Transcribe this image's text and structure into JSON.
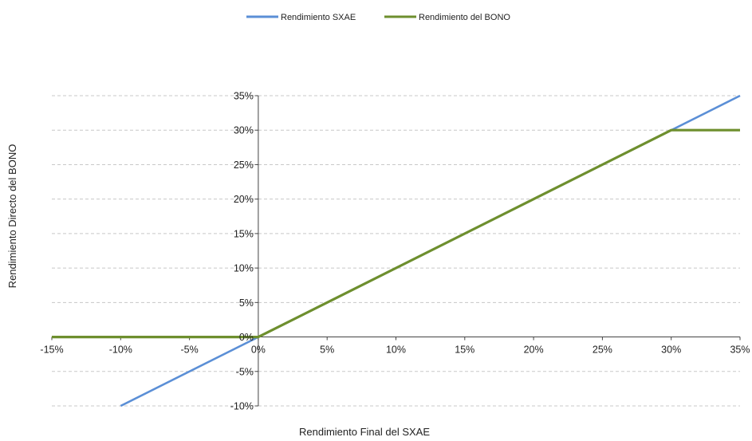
{
  "colors": {
    "series_sxae": "#5b8fd6",
    "series_bono": "#6e8f2e",
    "grid": "#c8c8c8",
    "axis": "#444444"
  },
  "chart_data": {
    "type": "line",
    "title": "",
    "xlabel": "Rendimiento Final del SXAE",
    "ylabel": "Rendimiento Directo del BONO",
    "xlim": [
      -15,
      35
    ],
    "ylim": [
      -10,
      35
    ],
    "x_ticks": [
      -15,
      -10,
      -5,
      0,
      5,
      10,
      15,
      20,
      25,
      30,
      35
    ],
    "y_ticks": [
      -10,
      -5,
      0,
      5,
      10,
      15,
      20,
      25,
      30,
      35
    ],
    "x_tick_labels": [
      "-15%",
      "-10%",
      "-5%",
      "0%",
      "5%",
      "10%",
      "15%",
      "20%",
      "25%",
      "30%",
      "35%"
    ],
    "y_tick_labels": [
      "-10%",
      "-5%",
      "0%",
      "5%",
      "10%",
      "15%",
      "20%",
      "25%",
      "30%",
      "35%"
    ],
    "grid": "horizontal dashed",
    "legend_position": "top-center",
    "series": [
      {
        "name": "Rendimiento SXAE",
        "color": "#5b8fd6",
        "x": [
          -10,
          0,
          35
        ],
        "y": [
          -10,
          0,
          35
        ]
      },
      {
        "name": "Rendimiento del BONO",
        "color": "#6e8f2e",
        "x": [
          -15,
          0,
          30,
          35
        ],
        "y": [
          0,
          0,
          30,
          30
        ]
      }
    ]
  }
}
